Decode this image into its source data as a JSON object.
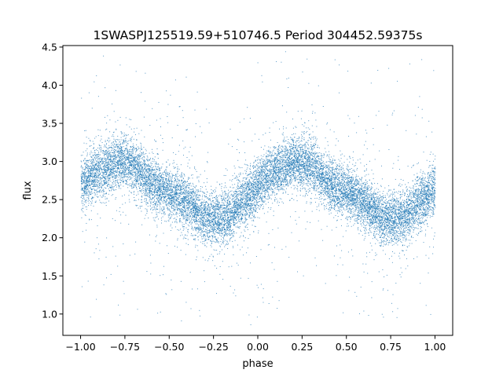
{
  "chart_data": {
    "type": "scatter",
    "title": "1SWASPJ125519.59+510746.5 Period 304452.59375s",
    "xlabel": "phase",
    "ylabel": "flux",
    "xlim": [
      -1.1,
      1.1
    ],
    "ylim": [
      0.72,
      4.52
    ],
    "xticks": [
      -1.0,
      -0.75,
      -0.5,
      -0.25,
      0.0,
      0.25,
      0.5,
      0.75,
      1.0
    ],
    "xtick_labels": [
      "−1.00",
      "−0.75",
      "−0.50",
      "−0.25",
      "0.00",
      "0.25",
      "0.50",
      "0.75",
      "1.00"
    ],
    "yticks": [
      1.0,
      1.5,
      2.0,
      2.5,
      3.0,
      3.5,
      4.0,
      4.5
    ],
    "ytick_labels": [
      "1.0",
      "1.5",
      "2.0",
      "2.5",
      "3.0",
      "3.5",
      "4.0",
      "4.5"
    ],
    "grid": false,
    "legend": "none",
    "color": "#1f77b4",
    "profile": {
      "phase": [
        -1.0,
        -0.95,
        -0.9,
        -0.85,
        -0.8,
        -0.75,
        -0.7,
        -0.65,
        -0.6,
        -0.55,
        -0.5,
        -0.45,
        -0.4,
        -0.35,
        -0.3,
        -0.25,
        -0.2,
        -0.15,
        -0.1,
        -0.05,
        0.0,
        0.05,
        0.1,
        0.15,
        0.2,
        0.25,
        0.3,
        0.35,
        0.4,
        0.45,
        0.5,
        0.55,
        0.6,
        0.65,
        0.7,
        0.75,
        0.8,
        0.85,
        0.9,
        0.95,
        1.0
      ],
      "flux": [
        2.68,
        2.8,
        2.88,
        2.93,
        3.0,
        3.0,
        2.95,
        2.82,
        2.72,
        2.64,
        2.6,
        2.56,
        2.45,
        2.35,
        2.27,
        2.25,
        2.25,
        2.32,
        2.45,
        2.55,
        2.68,
        2.8,
        2.88,
        2.93,
        3.0,
        3.0,
        2.95,
        2.82,
        2.72,
        2.64,
        2.6,
        2.56,
        2.45,
        2.35,
        2.27,
        2.25,
        2.25,
        2.32,
        2.45,
        2.55,
        2.68
      ]
    },
    "num_points": 15000
  }
}
